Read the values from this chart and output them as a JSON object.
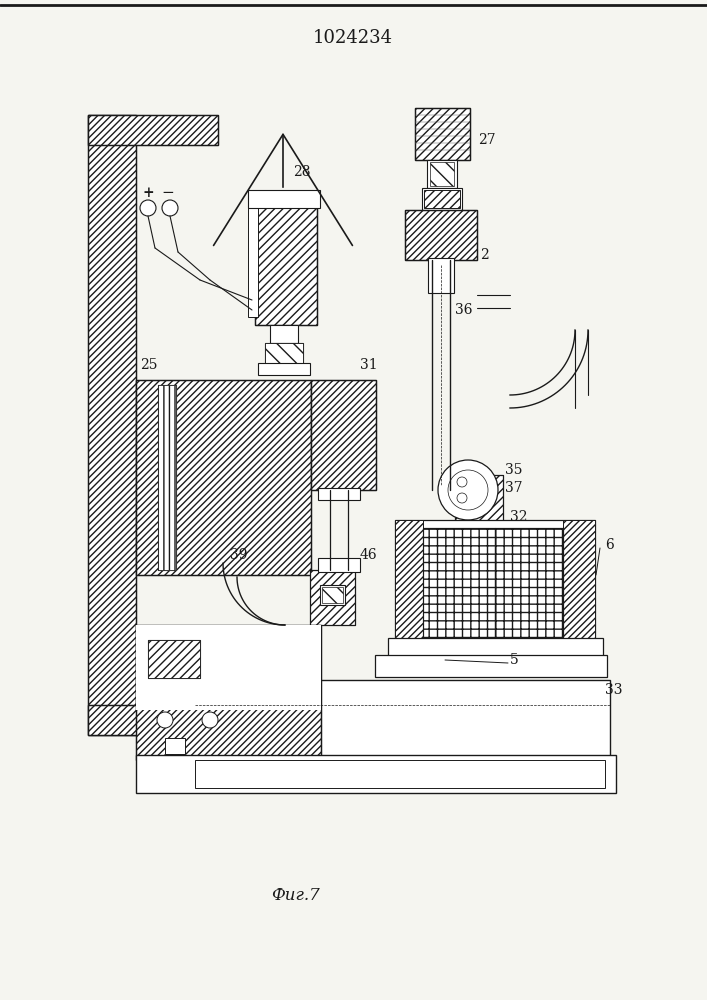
{
  "title": "1024234",
  "caption": "Фиг.7",
  "bg_color": "#f5f5f0",
  "line_color": "#1a1a1a",
  "title_fontsize": 13,
  "caption_fontsize": 12
}
